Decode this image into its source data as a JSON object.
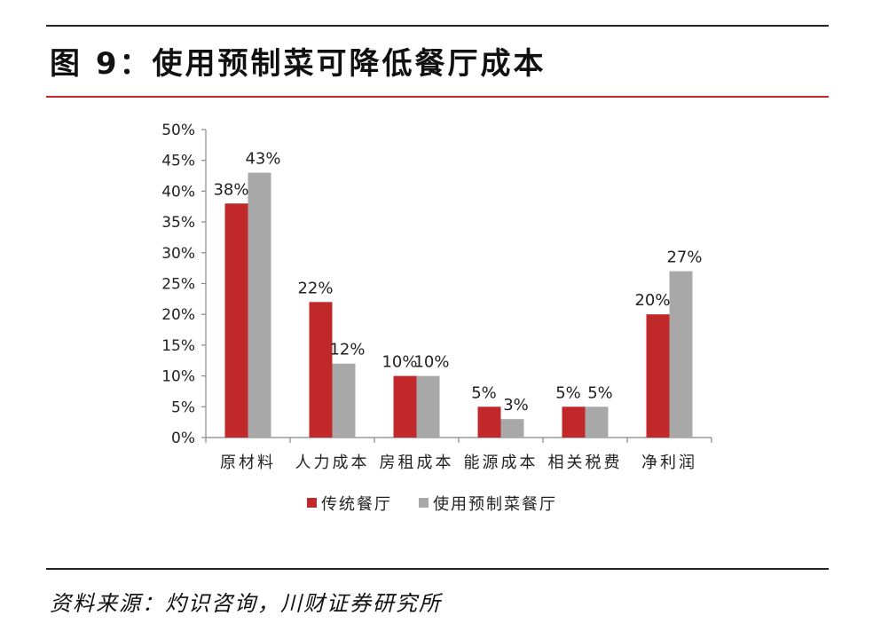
{
  "figure": {
    "title": "图 9：使用预制菜可降低餐厅成本",
    "source": "资料来源：灼识咨询，川财证券研究所"
  },
  "colors": {
    "series1": "#c0282a",
    "series2": "#a8a8a8",
    "axis": "#888888"
  },
  "chart_data": {
    "type": "bar",
    "title": "",
    "xlabel": "",
    "ylabel": "",
    "categories": [
      "原材料",
      "人力成本",
      "房租成本",
      "能源成本",
      "相关税费",
      "净利润"
    ],
    "series": [
      {
        "name": "传统餐厅",
        "values": [
          38,
          22,
          10,
          5,
          5,
          20
        ],
        "labels": [
          "38%",
          "22%",
          "10%",
          "5%",
          "5%",
          "20%"
        ]
      },
      {
        "name": "使用预制菜餐厅",
        "values": [
          43,
          12,
          10,
          3,
          5,
          27
        ],
        "labels": [
          "43%",
          "12%",
          "10%",
          "3%",
          "5%",
          "27%"
        ]
      }
    ],
    "ylim": [
      0,
      50
    ],
    "yticks": [
      "0%",
      "5%",
      "10%",
      "15%",
      "20%",
      "25%",
      "30%",
      "35%",
      "40%",
      "45%",
      "50%"
    ],
    "grid": false,
    "legend_position": "bottom"
  }
}
